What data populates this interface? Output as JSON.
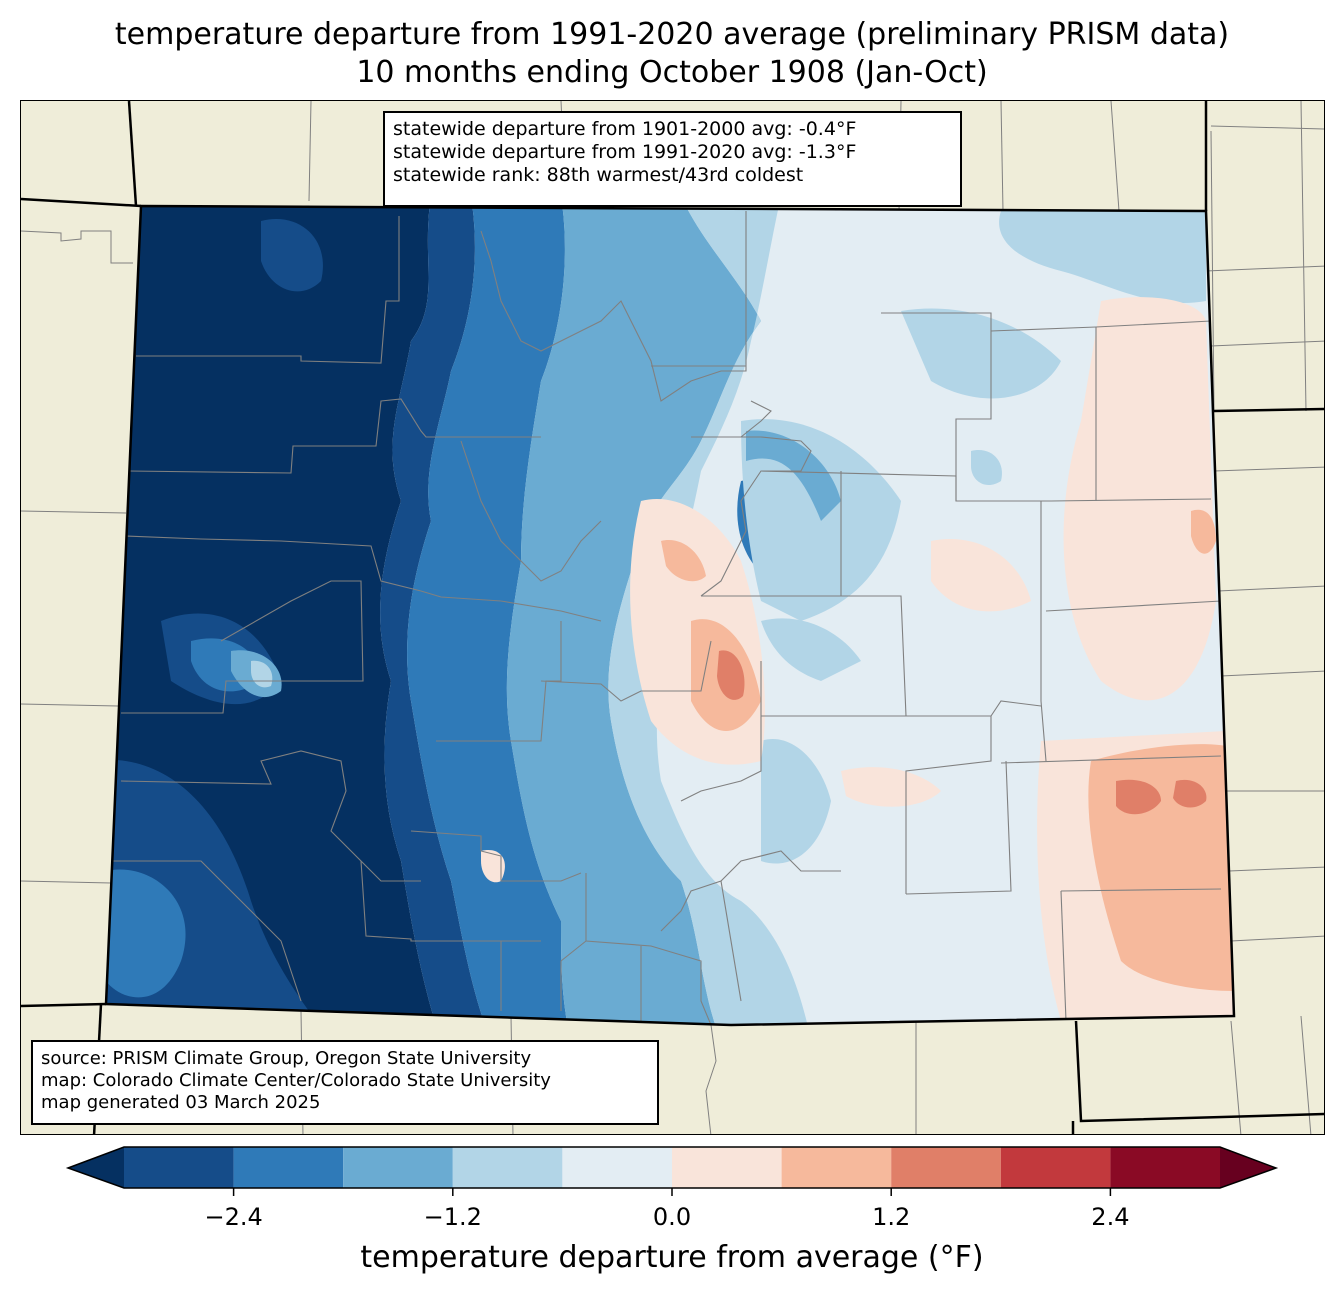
{
  "title": {
    "line1": "temperature departure from 1991-2020 average (preliminary PRISM data)",
    "line2": "10 months ending October 1908 (Jan-Oct)"
  },
  "stats": {
    "line1": "statewide departure from 1901-2000 avg: -0.4°F",
    "line2": "statewide departure from 1991-2020 avg: -1.3°F",
    "line3": "statewide rank: 88th warmest/43rd coldest"
  },
  "source": {
    "line1": "source: PRISM Climate Group, Oregon State University",
    "line2": "map: Colorado Climate Center/Colorado State University",
    "line3": "map generated 03 March 2025"
  },
  "colorbar": {
    "label": "temperature departure from average (°F)",
    "min": -3.0,
    "max": 3.0,
    "step": 0.6,
    "ticks": [
      {
        "value": -2.4,
        "label": "−2.4"
      },
      {
        "value": -1.2,
        "label": "−1.2"
      },
      {
        "value": 0.0,
        "label": "0.0"
      },
      {
        "value": 1.2,
        "label": "1.2"
      },
      {
        "value": 2.4,
        "label": "2.4"
      }
    ],
    "under_color": "#053061",
    "over_color": "#67001f",
    "bins": [
      {
        "from": -3.0,
        "to": -2.4,
        "color": "#154c89"
      },
      {
        "from": -2.4,
        "to": -1.8,
        "color": "#2f7ab8"
      },
      {
        "from": -1.8,
        "to": -1.2,
        "color": "#6aabd2"
      },
      {
        "from": -1.2,
        "to": -0.6,
        "color": "#b2d5e7"
      },
      {
        "from": -0.6,
        "to": 0.0,
        "color": "#e3edf3"
      },
      {
        "from": 0.0,
        "to": 0.6,
        "color": "#f9e4da"
      },
      {
        "from": 0.6,
        "to": 1.2,
        "color": "#f6b99c"
      },
      {
        "from": 1.2,
        "to": 1.8,
        "color": "#e07f68"
      },
      {
        "from": 1.8,
        "to": 2.4,
        "color": "#c2393d"
      },
      {
        "from": 2.4,
        "to": 3.0,
        "color": "#8a0a25"
      }
    ]
  },
  "map": {
    "background_color": "#efedd9",
    "state_border_color": "#000000",
    "county_line_color": "#808080"
  }
}
